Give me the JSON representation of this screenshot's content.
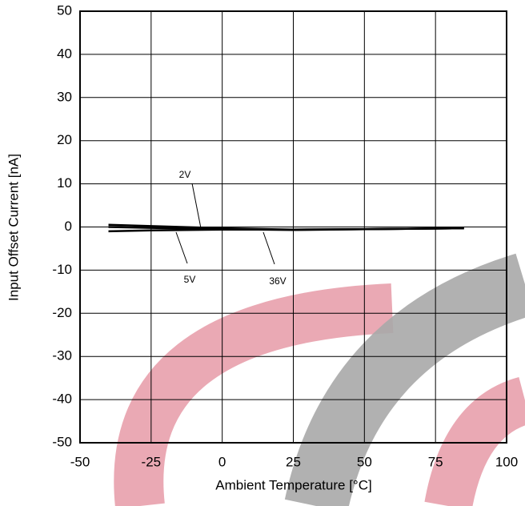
{
  "chart_data": {
    "type": "line",
    "xlabel": "Ambient Temperature [°C]",
    "ylabel": "Input Offset Current [nA]",
    "x": [
      -40,
      -25,
      0,
      25,
      50,
      85
    ],
    "series": [
      {
        "name": "2V",
        "color": "#000000",
        "values": [
          0.5,
          0.2,
          -0.3,
          -0.6,
          -0.5,
          -0.3
        ]
      },
      {
        "name": "5V",
        "color": "#000000",
        "values": [
          -1,
          -0.8,
          -0.6,
          -0.6,
          -0.5,
          -0.3
        ]
      },
      {
        "name": "36V",
        "color": "#000000",
        "values": [
          0,
          -0.2,
          -0.5,
          -0.7,
          -0.5,
          -0.3
        ]
      }
    ],
    "xlim": [
      -50,
      100
    ],
    "xticks": [
      -50,
      -25,
      0,
      25,
      50,
      75,
      100
    ],
    "ylim": [
      -50,
      50
    ],
    "yticks": [
      -50,
      -40,
      -30,
      -20,
      -10,
      0,
      10,
      20,
      30,
      40,
      50
    ],
    "grid": true
  }
}
